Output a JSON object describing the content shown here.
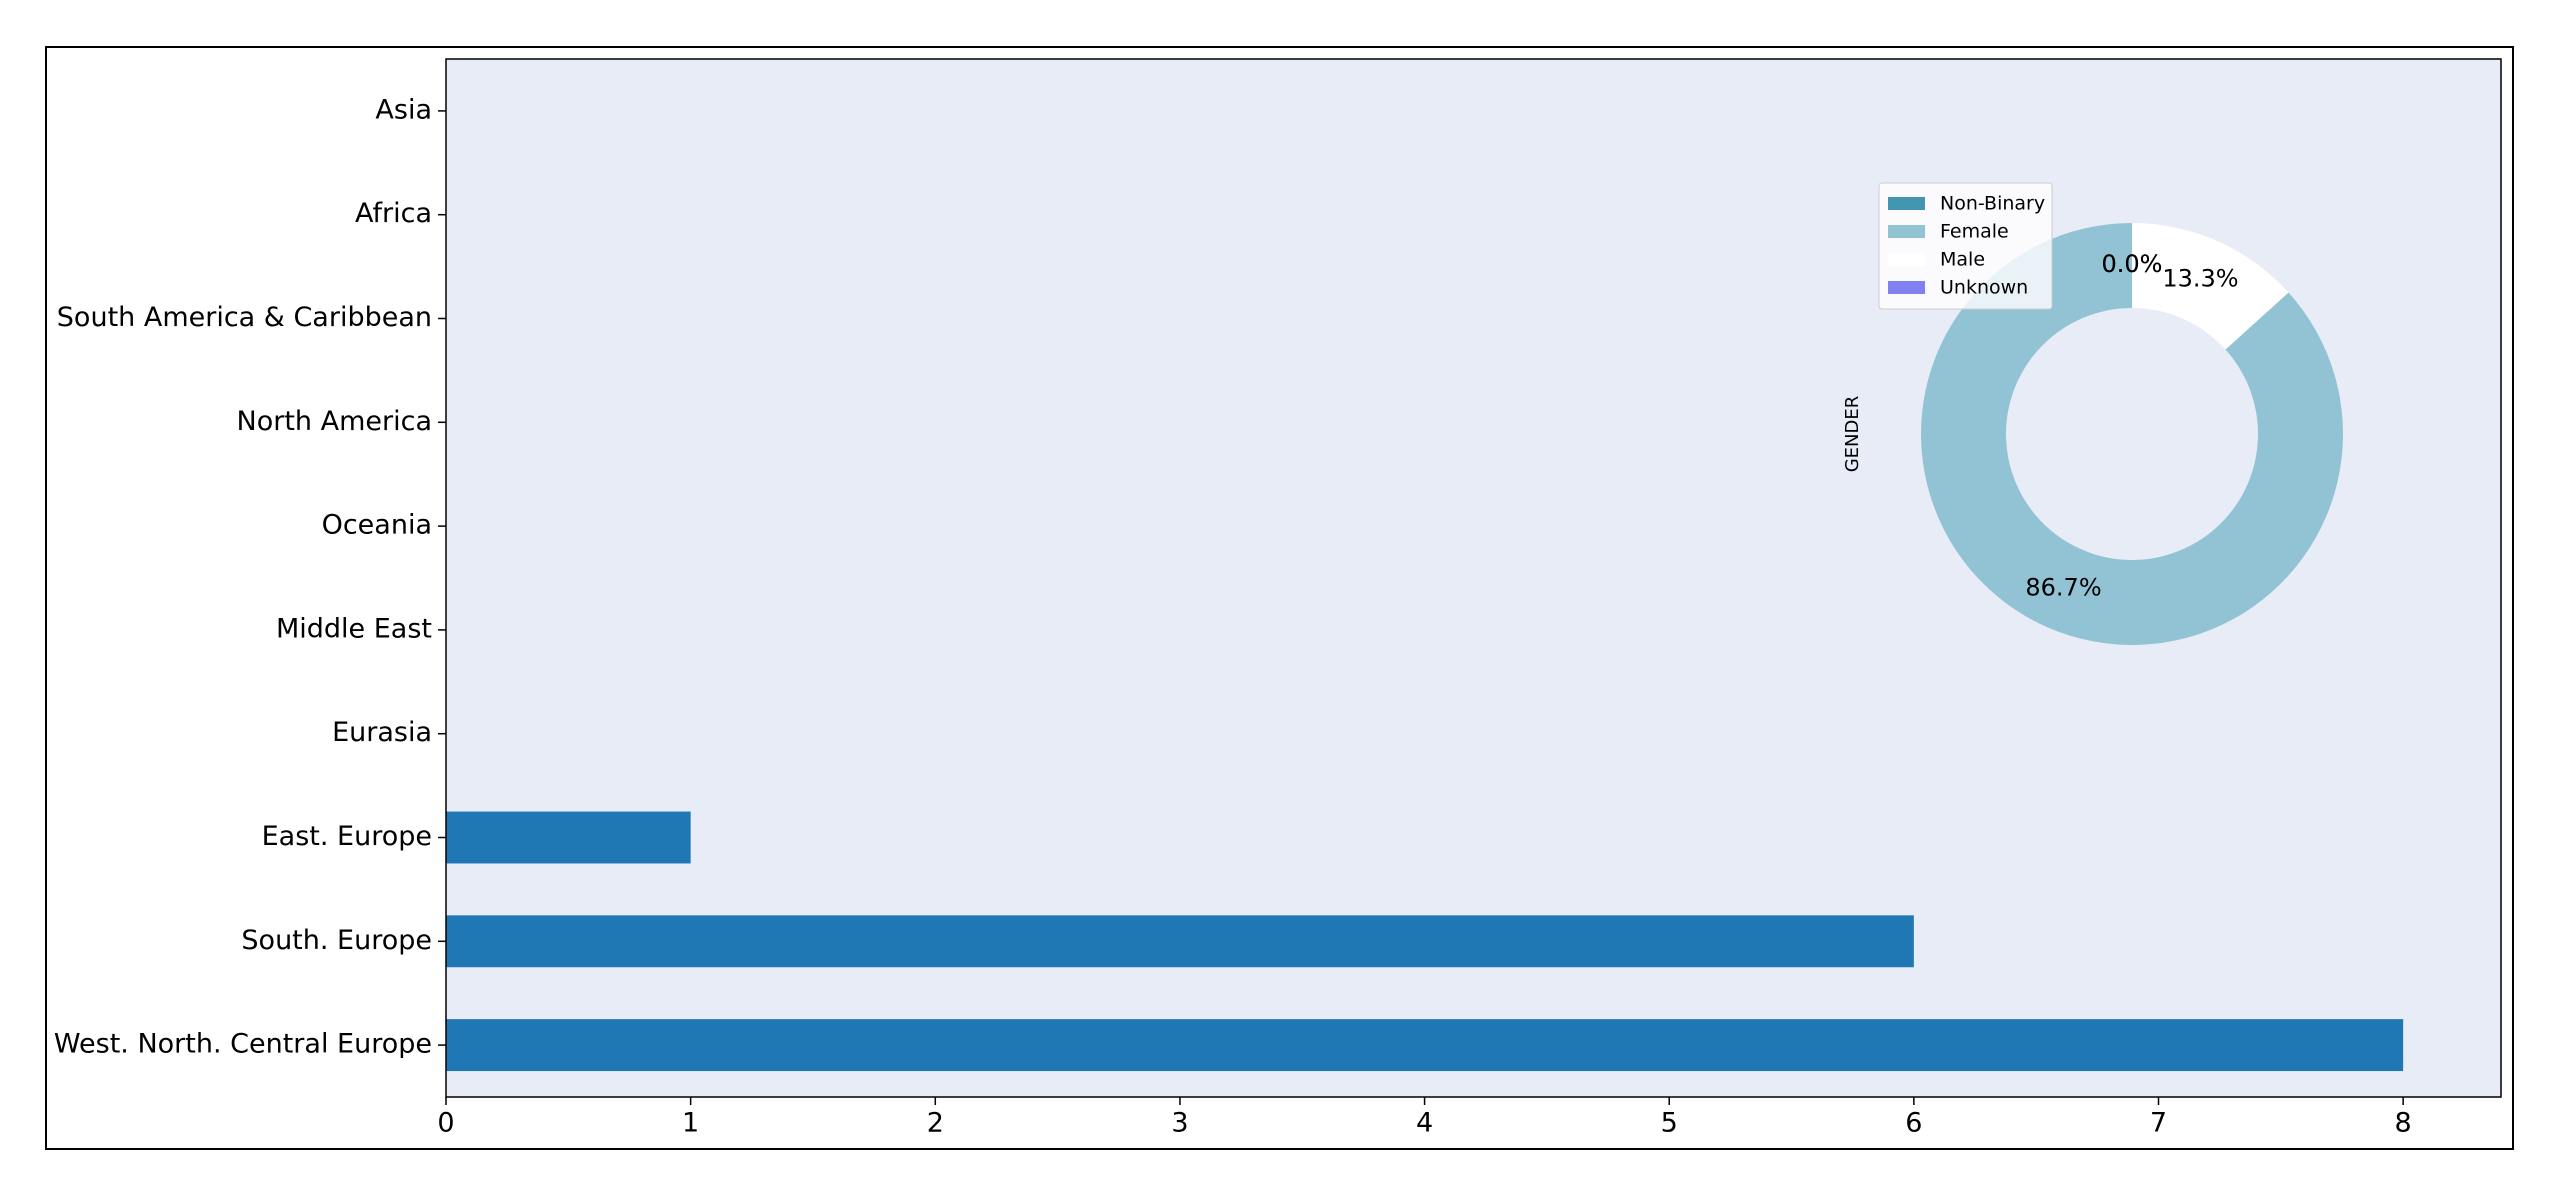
{
  "chart_data": [
    {
      "type": "barh",
      "categories": [
        "Asia",
        "Africa",
        "South America & Caribbean",
        "North America",
        "Oceania",
        "Middle East",
        "Eurasia",
        "East. Europe",
        "South. Europe",
        "West. North. Central Europe"
      ],
      "values": [
        0,
        0,
        0,
        0,
        0,
        0,
        0,
        1,
        6,
        8
      ],
      "color": "#1f77b4",
      "xlim": [
        0,
        8.4
      ],
      "xticks": [
        0,
        1,
        2,
        3,
        4,
        5,
        6,
        7,
        8
      ],
      "grid": false
    },
    {
      "type": "pie",
      "labels": [
        "Non-Binary",
        "Female",
        "Male",
        "Unknown"
      ],
      "values": [
        0,
        86.7,
        13.3,
        0
      ],
      "value_labels": [
        "0.0%",
        "86.7%",
        "13.3%",
        "0.0%"
      ],
      "colors": [
        "#4396b2",
        "#92c3d5",
        "#ffffff",
        "#8080f0"
      ],
      "ylabel": "GENDER",
      "legend": "upper left",
      "donut": true
    }
  ]
}
